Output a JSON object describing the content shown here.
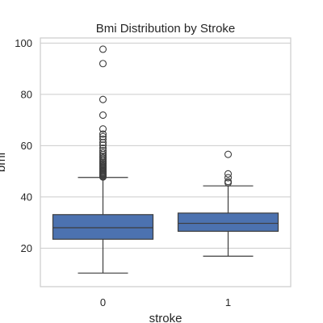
{
  "chart_data": {
    "type": "box",
    "title": "Bmi Distribution by Stroke",
    "xlabel": "stroke",
    "ylabel": "bmi",
    "categories": [
      "0",
      "1"
    ],
    "ylim": [
      5,
      102
    ],
    "yticks": [
      20,
      40,
      60,
      80,
      100
    ],
    "grid": "horizontal",
    "box_color": "#4c72b0",
    "line_color": "#3d3d3d",
    "boxes": [
      {
        "category": "0",
        "whisker_low": 10.3,
        "q1": 23.5,
        "median": 28.0,
        "q3": 33.1,
        "whisker_high": 47.6,
        "outliers": [
          47.8,
          48.0,
          48.3,
          48.6,
          48.9,
          49.2,
          49.5,
          49.9,
          50.3,
          50.7,
          51.2,
          51.6,
          52.0,
          52.5,
          53.0,
          53.5,
          54.0,
          54.6,
          55.2,
          55.8,
          56.5,
          57.2,
          58.0,
          59.0,
          60.2,
          61.2,
          62.5,
          63.5,
          64.5,
          66.5,
          71.9,
          78.0,
          92.0,
          97.6
        ]
      },
      {
        "category": "1",
        "whisker_low": 16.9,
        "q1": 26.6,
        "median": 29.7,
        "q3": 33.7,
        "whisker_high": 44.3,
        "outliers": [
          45.5,
          46.0,
          47.5,
          49.0,
          56.6
        ]
      }
    ]
  }
}
